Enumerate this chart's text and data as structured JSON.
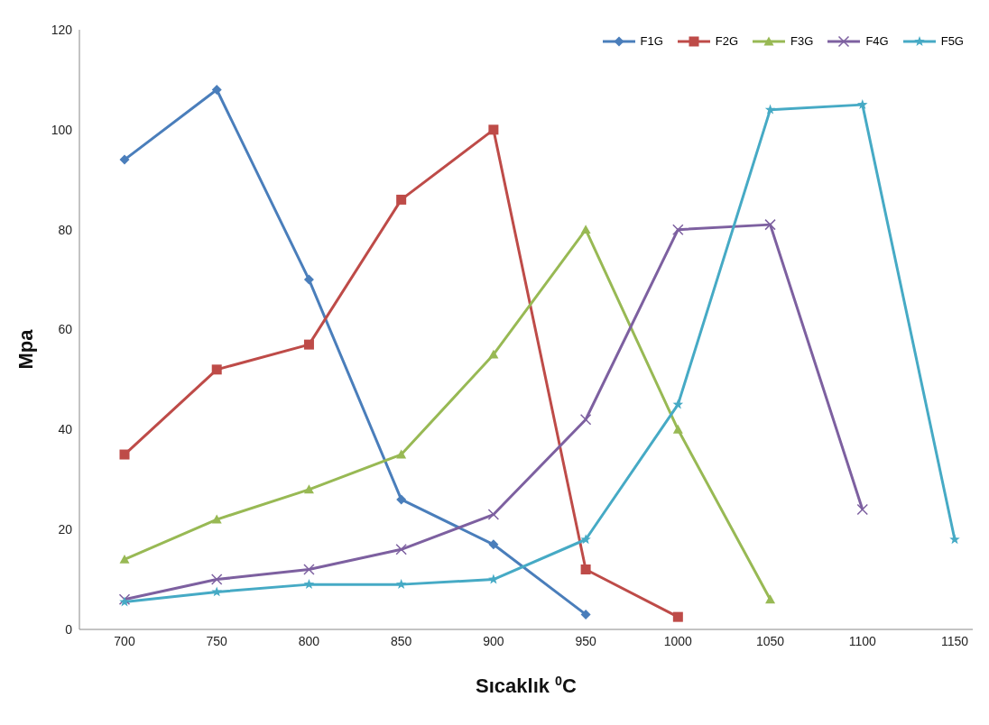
{
  "chart_data": {
    "type": "line",
    "xlabel": "Sıcaklık $^{0}$C",
    "ylabel": "Mpa",
    "categories": [
      "700",
      "750",
      "800",
      "850",
      "900",
      "950",
      "1000",
      "1050",
      "1100",
      "1150"
    ],
    "ylim": [
      0,
      120
    ],
    "yticks": [
      0,
      20,
      40,
      60,
      80,
      100,
      120
    ],
    "grid": false,
    "legend": "top right",
    "line_style": "solid",
    "series": [
      {
        "name": "F1G",
        "color": "#4a7ebb",
        "marker": "diamond",
        "values": [
          94,
          108,
          70,
          26,
          17,
          3,
          null,
          null,
          null,
          null
        ]
      },
      {
        "name": "F2G",
        "color": "#be4b48",
        "marker": "square",
        "values": [
          35,
          52,
          57,
          86,
          100,
          12,
          2.5,
          null,
          null,
          null
        ]
      },
      {
        "name": "F3G",
        "color": "#98b954",
        "marker": "triangle",
        "values": [
          14,
          22,
          28,
          35,
          55,
          80,
          40,
          6,
          null,
          null
        ]
      },
      {
        "name": "F4G",
        "color": "#7d60a0",
        "marker": "cross",
        "values": [
          6,
          10,
          12,
          16,
          23,
          42,
          80,
          81,
          24,
          null
        ]
      },
      {
        "name": "F5G",
        "color": "#46aac5",
        "marker": "star",
        "values": [
          5.5,
          7.5,
          9,
          9,
          10,
          18,
          45,
          104,
          105,
          18
        ]
      }
    ]
  }
}
